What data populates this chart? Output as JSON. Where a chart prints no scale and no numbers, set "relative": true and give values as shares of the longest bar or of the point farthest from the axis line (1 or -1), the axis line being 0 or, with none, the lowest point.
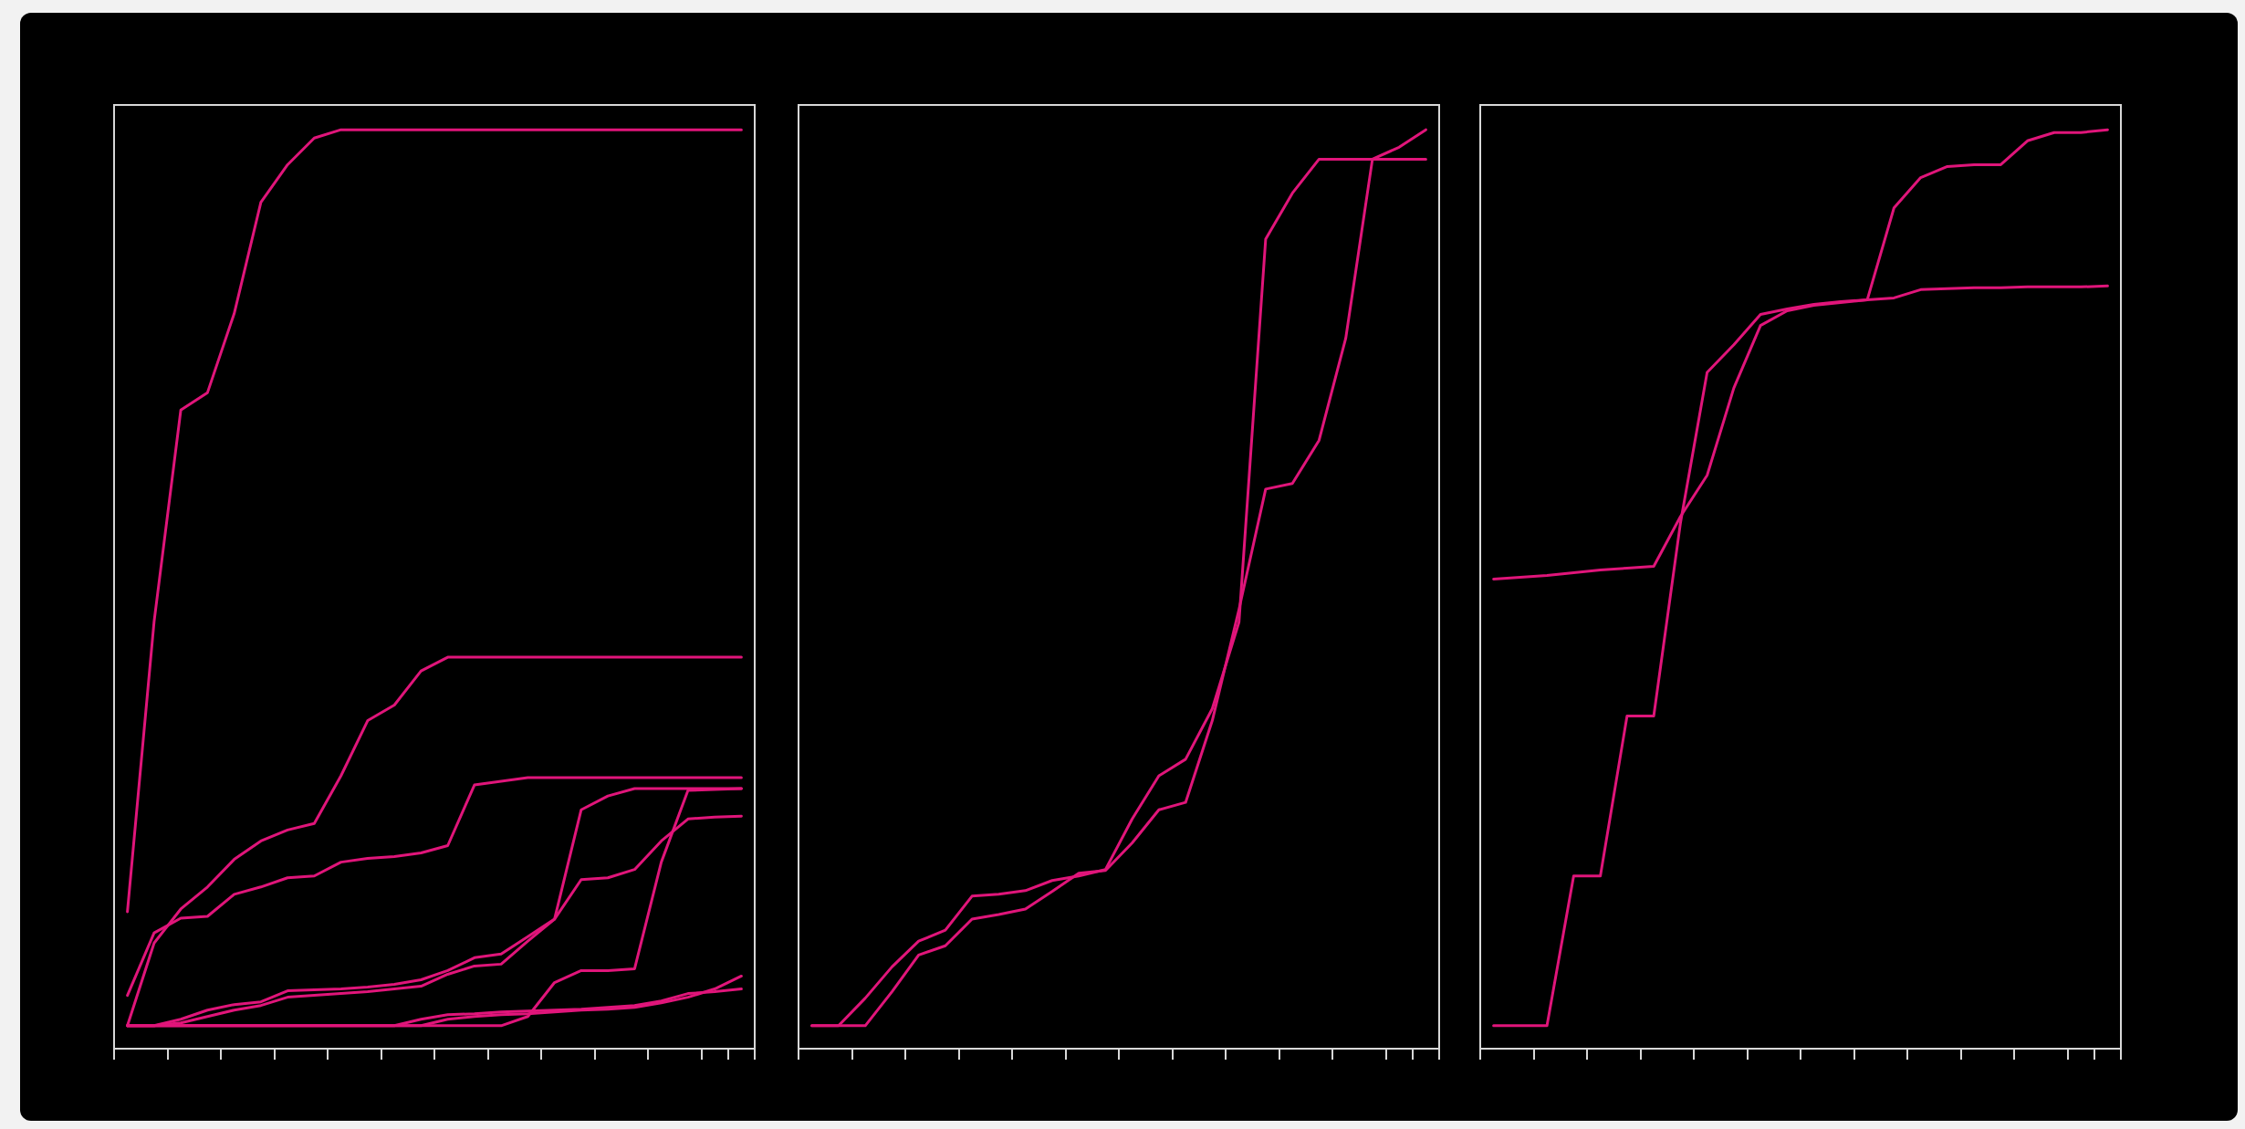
{
  "chart_data": [
    {
      "type": "line",
      "relative": true,
      "marker": "none",
      "categories": [
        null,
        null,
        null,
        null,
        null,
        null,
        null,
        null,
        null,
        null,
        null,
        null,
        null,
        null,
        null,
        null,
        null,
        null,
        null,
        null,
        null,
        null,
        null,
        null
      ],
      "series": [
        {
          "color": "#e0157a",
          "values": [
            0.149,
            0.465,
            0.695,
            0.714,
            0.8,
            0.921,
            0.962,
            0.991,
            1,
            1,
            1,
            1,
            1,
            1,
            1,
            1,
            1,
            1,
            1,
            1,
            1,
            1,
            1,
            1
          ]
        },
        {
          "color": "#e0157a",
          "values": [
            0.025,
            0.115,
            0.152,
            0.176,
            0.206,
            0.226,
            0.238,
            0.245,
            0.297,
            0.357,
            0.374,
            0.411,
            0.426,
            0.426,
            0.426,
            0.426,
            0.426,
            0.426,
            0.426,
            0.426,
            0.426,
            0.426,
            0.426,
            0.426
          ]
        },
        {
          "color": "#e0157a",
          "values": [
            0.058,
            0.126,
            0.142,
            0.144,
            0.168,
            0.176,
            0.186,
            0.188,
            0.203,
            0.207,
            0.209,
            0.213,
            0.221,
            0.287,
            0.291,
            0.295,
            0.295,
            0.295,
            0.295,
            0.295,
            0.295,
            0.295,
            0.295,
            0.295
          ]
        },
        {
          "color": "#e0157a",
          "values": [
            0.025,
            0.025,
            0.032,
            0.042,
            0.048,
            0.051,
            0.063,
            0.064,
            0.065,
            0.067,
            0.07,
            0.075,
            0.085,
            0.099,
            0.103,
            0.122,
            0.141,
            0.26,
            0.275,
            0.283,
            0.283,
            0.283,
            0.283,
            0.283
          ]
        },
        {
          "color": "#e0157a",
          "values": [
            0.025,
            0.025,
            0.028,
            0.035,
            0.042,
            0.047,
            0.056,
            0.058,
            0.06,
            0.062,
            0.065,
            0.068,
            0.081,
            0.09,
            0.092,
            0.117,
            0.141,
            0.184,
            0.186,
            0.195,
            0.226,
            0.25,
            0.252,
            0.253
          ]
        },
        {
          "color": "#e0157a",
          "values": [
            0.025,
            0.025,
            0.025,
            0.025,
            0.025,
            0.025,
            0.025,
            0.025,
            0.025,
            0.025,
            0.025,
            0.025,
            0.025,
            0.025,
            0.025,
            0.035,
            0.072,
            0.085,
            0.085,
            0.087,
            0.203,
            0.281,
            0.282,
            0.283
          ]
        },
        {
          "color": "#e0157a",
          "values": [
            0.025,
            0.025,
            0.025,
            0.025,
            0.025,
            0.025,
            0.025,
            0.025,
            0.025,
            0.025,
            0.025,
            0.032,
            0.037,
            0.038,
            0.04,
            0.041,
            0.042,
            0.043,
            0.045,
            0.047,
            0.052,
            0.06,
            0.062,
            0.065
          ]
        },
        {
          "color": "#e0157a",
          "values": [
            0.025,
            0.025,
            0.025,
            0.025,
            0.025,
            0.025,
            0.025,
            0.025,
            0.025,
            0.025,
            0.025,
            0.025,
            0.032,
            0.035,
            0.037,
            0.038,
            0.04,
            0.042,
            0.043,
            0.045,
            0.05,
            0.056,
            0.065,
            0.079
          ]
        }
      ]
    },
    {
      "type": "line",
      "relative": true,
      "marker": "none",
      "categories": [
        null,
        null,
        null,
        null,
        null,
        null,
        null,
        null,
        null,
        null,
        null,
        null,
        null,
        null,
        null,
        null,
        null,
        null,
        null,
        null,
        null,
        null,
        null,
        null
      ],
      "series": [
        {
          "color": "#e0157a",
          "values": [
            0.025,
            0.025,
            0.055,
            0.089,
            0.117,
            0.129,
            0.166,
            0.168,
            0.172,
            0.183,
            0.188,
            0.195,
            0.25,
            0.297,
            0.315,
            0.37,
            0.464,
            0.881,
            0.931,
            0.968,
            0.968,
            0.968,
            0.968,
            0.968
          ]
        },
        {
          "color": "#e0157a",
          "values": [
            0.025,
            0.025,
            0.025,
            0.062,
            0.102,
            0.112,
            0.141,
            0.146,
            0.152,
            0.171,
            0.191,
            0.194,
            0.224,
            0.26,
            0.268,
            0.357,
            0.478,
            0.609,
            0.615,
            0.662,
            0.773,
            0.968,
            0.981,
            1
          ]
        }
      ]
    },
    {
      "type": "line",
      "relative": true,
      "marker": "none",
      "categories": [
        null,
        null,
        null,
        null,
        null,
        null,
        null,
        null,
        null,
        null,
        null,
        null,
        null,
        null,
        null,
        null,
        null,
        null,
        null,
        null,
        null,
        null,
        null,
        null
      ],
      "series": [
        {
          "color": "#e0157a",
          "values": [
            0.025,
            0.025,
            0.025,
            0.188,
            0.188,
            0.362,
            0.362,
            0.572,
            0.736,
            0.766,
            0.799,
            0.805,
            0.81,
            0.813,
            0.815,
            0.915,
            0.948,
            0.96,
            0.962,
            0.962,
            0.988,
            0.997,
            0.997,
            1
          ]
        },
        {
          "color": "#e0157a",
          "values": [
            0.511,
            0.513,
            0.515,
            0.518,
            0.521,
            0.523,
            0.525,
            0.579,
            0.624,
            0.719,
            0.787,
            0.803,
            0.809,
            0.812,
            0.815,
            0.817,
            0.826,
            0.827,
            0.828,
            0.828,
            0.829,
            0.829,
            0.829,
            0.83
          ]
        }
      ]
    }
  ]
}
